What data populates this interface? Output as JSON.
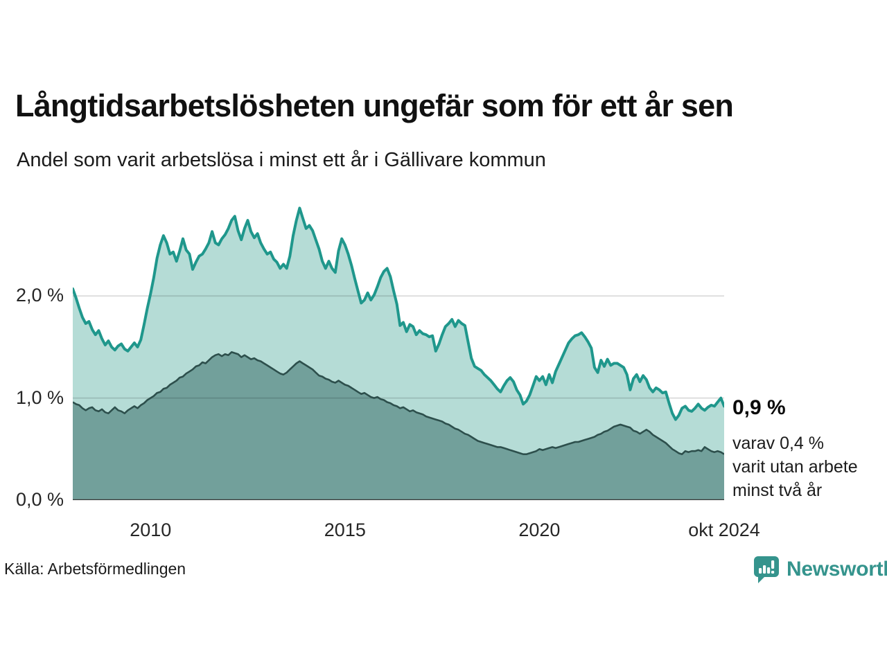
{
  "header": {
    "title": "Långtidsarbetslösheten ungefär som för ett år sen",
    "subtitle": "Andel som varit arbetslösa i minst ett år i Gällivare kommun"
  },
  "chart_data": {
    "type": "area",
    "title": "Långtidsarbetslösheten ungefär som för ett år sen",
    "subtitle": "Andel som varit arbetslösa i minst ett år i Gällivare kommun",
    "x_unit": "month",
    "x_range": [
      "2008-01",
      "2024-10"
    ],
    "ylim": [
      0,
      3.1
    ],
    "grid": "horizontal",
    "legend": "none",
    "y_ticks": [
      {
        "label": "2,0 %",
        "value": 2.0
      },
      {
        "label": "1,0 %",
        "value": 1.0
      },
      {
        "label": "0,0 %",
        "value": 0.0
      }
    ],
    "x_ticks": [
      {
        "label": "2010",
        "month_index": 24
      },
      {
        "label": "2015",
        "month_index": 84
      },
      {
        "label": "2020",
        "month_index": 144
      },
      {
        "label": "okt 2024",
        "month_index": 201
      }
    ],
    "series": [
      {
        "name": "Andel arbetslösa i minst ett år",
        "line_color": "#1f978c",
        "fill_color": "#b5dcd6",
        "values": [
          2.07,
          1.98,
          1.88,
          1.79,
          1.73,
          1.75,
          1.67,
          1.62,
          1.66,
          1.58,
          1.52,
          1.56,
          1.5,
          1.47,
          1.51,
          1.53,
          1.48,
          1.46,
          1.5,
          1.54,
          1.5,
          1.57,
          1.72,
          1.88,
          2.02,
          2.18,
          2.37,
          2.5,
          2.59,
          2.52,
          2.41,
          2.43,
          2.34,
          2.44,
          2.56,
          2.45,
          2.41,
          2.26,
          2.33,
          2.39,
          2.41,
          2.46,
          2.52,
          2.63,
          2.52,
          2.5,
          2.56,
          2.6,
          2.66,
          2.74,
          2.78,
          2.64,
          2.55,
          2.66,
          2.74,
          2.63,
          2.57,
          2.61,
          2.52,
          2.46,
          2.41,
          2.43,
          2.36,
          2.33,
          2.27,
          2.31,
          2.27,
          2.39,
          2.59,
          2.74,
          2.86,
          2.76,
          2.66,
          2.69,
          2.64,
          2.55,
          2.46,
          2.34,
          2.27,
          2.34,
          2.27,
          2.23,
          2.44,
          2.56,
          2.5,
          2.41,
          2.3,
          2.17,
          2.05,
          1.93,
          1.96,
          2.03,
          1.96,
          2.01,
          2.09,
          2.18,
          2.24,
          2.27,
          2.19,
          2.05,
          1.92,
          1.71,
          1.74,
          1.65,
          1.72,
          1.7,
          1.62,
          1.66,
          1.63,
          1.62,
          1.6,
          1.61,
          1.46,
          1.53,
          1.62,
          1.7,
          1.73,
          1.77,
          1.7,
          1.76,
          1.73,
          1.71,
          1.55,
          1.39,
          1.31,
          1.29,
          1.27,
          1.23,
          1.2,
          1.17,
          1.13,
          1.09,
          1.06,
          1.12,
          1.17,
          1.2,
          1.16,
          1.08,
          1.03,
          0.94,
          0.97,
          1.03,
          1.12,
          1.21,
          1.17,
          1.21,
          1.13,
          1.23,
          1.15,
          1.26,
          1.33,
          1.4,
          1.47,
          1.54,
          1.58,
          1.61,
          1.62,
          1.64,
          1.6,
          1.55,
          1.49,
          1.3,
          1.25,
          1.37,
          1.31,
          1.38,
          1.32,
          1.34,
          1.34,
          1.32,
          1.3,
          1.23,
          1.08,
          1.19,
          1.23,
          1.16,
          1.22,
          1.18,
          1.1,
          1.06,
          1.1,
          1.08,
          1.05,
          1.06,
          0.95,
          0.85,
          0.79,
          0.83,
          0.9,
          0.92,
          0.88,
          0.87,
          0.9,
          0.94,
          0.9,
          0.88,
          0.91,
          0.93,
          0.92,
          0.96,
          1.0,
          0.92
        ]
      },
      {
        "name": "Andel som varit utan arbete minst två år",
        "line_color": "#2d4f4c",
        "fill_color": "#72a09b",
        "values": [
          0.96,
          0.94,
          0.93,
          0.9,
          0.88,
          0.9,
          0.91,
          0.88,
          0.87,
          0.89,
          0.86,
          0.85,
          0.88,
          0.91,
          0.88,
          0.87,
          0.85,
          0.88,
          0.9,
          0.92,
          0.9,
          0.93,
          0.95,
          0.98,
          1.0,
          1.02,
          1.05,
          1.06,
          1.09,
          1.1,
          1.13,
          1.15,
          1.17,
          1.2,
          1.21,
          1.24,
          1.26,
          1.28,
          1.31,
          1.32,
          1.35,
          1.34,
          1.37,
          1.4,
          1.42,
          1.43,
          1.41,
          1.43,
          1.42,
          1.45,
          1.44,
          1.43,
          1.4,
          1.42,
          1.4,
          1.38,
          1.39,
          1.37,
          1.36,
          1.34,
          1.32,
          1.3,
          1.28,
          1.26,
          1.24,
          1.23,
          1.25,
          1.28,
          1.31,
          1.34,
          1.36,
          1.34,
          1.32,
          1.3,
          1.28,
          1.25,
          1.22,
          1.21,
          1.19,
          1.18,
          1.16,
          1.15,
          1.17,
          1.15,
          1.13,
          1.12,
          1.1,
          1.08,
          1.06,
          1.04,
          1.05,
          1.03,
          1.01,
          1.0,
          1.01,
          0.99,
          0.98,
          0.96,
          0.95,
          0.93,
          0.92,
          0.9,
          0.91,
          0.89,
          0.87,
          0.88,
          0.86,
          0.85,
          0.84,
          0.82,
          0.81,
          0.8,
          0.79,
          0.78,
          0.77,
          0.75,
          0.74,
          0.72,
          0.7,
          0.69,
          0.67,
          0.65,
          0.64,
          0.62,
          0.6,
          0.58,
          0.57,
          0.56,
          0.55,
          0.54,
          0.53,
          0.52,
          0.52,
          0.51,
          0.5,
          0.49,
          0.48,
          0.47,
          0.46,
          0.45,
          0.45,
          0.46,
          0.47,
          0.48,
          0.5,
          0.49,
          0.5,
          0.51,
          0.52,
          0.51,
          0.52,
          0.53,
          0.54,
          0.55,
          0.56,
          0.57,
          0.57,
          0.58,
          0.59,
          0.6,
          0.61,
          0.62,
          0.64,
          0.65,
          0.67,
          0.68,
          0.7,
          0.72,
          0.73,
          0.74,
          0.73,
          0.72,
          0.71,
          0.68,
          0.67,
          0.65,
          0.67,
          0.69,
          0.67,
          0.64,
          0.62,
          0.6,
          0.58,
          0.56,
          0.53,
          0.5,
          0.48,
          0.46,
          0.45,
          0.48,
          0.47,
          0.48,
          0.48,
          0.49,
          0.48,
          0.52,
          0.5,
          0.48,
          0.47,
          0.48,
          0.47,
          0.45
        ]
      }
    ],
    "end_labels": {
      "primary": "0,9 %",
      "secondary": [
        "varav 0,4 %",
        "varit utan arbete",
        "minst två år"
      ]
    }
  },
  "footer": {
    "source": "Källa: Arbetsförmedlingen",
    "logo_text": "Newsworthy"
  },
  "colors": {
    "line_primary": "#1f978c",
    "fill_primary": "#b5dcd6",
    "line_secondary": "#2d4f4c",
    "fill_secondary": "#72a09b",
    "gridline": "#dedede",
    "baseline": "#3a3a3a",
    "brand_teal": "#35948d"
  }
}
